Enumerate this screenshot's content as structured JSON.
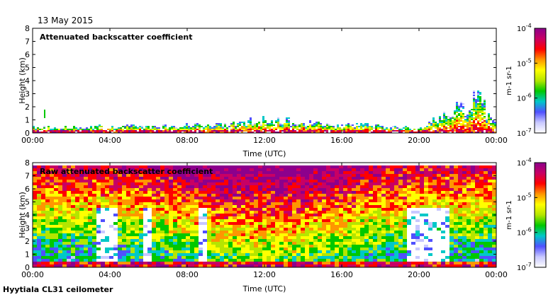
{
  "date_label": "13 May 2015",
  "footer": "Hyytiala CL31 ceilometer",
  "colors": {
    "colormap": [
      "#ffffff",
      "#c8c8ff",
      "#5050ff",
      "#00c8c8",
      "#00c800",
      "#b4e600",
      "#ffff00",
      "#ff9600",
      "#ff0000",
      "#c80064",
      "#8c008c"
    ]
  },
  "chart_data": [
    {
      "type": "heatmap",
      "title": "Attenuated backscatter coefficient",
      "xlabel": "Time (UTC)",
      "ylabel": "Height (km)",
      "x_tick_labels": [
        "00:00",
        "04:00",
        "08:00",
        "12:00",
        "16:00",
        "20:00",
        "00:00"
      ],
      "y_tick_labels": [
        "0",
        "1",
        "2",
        "3",
        "4",
        "5",
        "6",
        "7",
        "8"
      ],
      "xlim_hours": [
        0,
        24
      ],
      "ylim": [
        0,
        8
      ],
      "colorbar": {
        "label": "m-1 sr-1",
        "tick_labels": [
          "10",
          "10",
          "10",
          "10"
        ],
        "tick_exponents": [
          "-4",
          "-5",
          "-6",
          "-7"
        ],
        "range": [
          1e-07,
          0.0001
        ],
        "scale": "log"
      },
      "description_layer_top_km": [
        [
          0,
          0.35
        ],
        [
          9,
          0.5
        ],
        [
          12,
          0.9
        ],
        [
          16,
          0.6
        ],
        [
          20,
          0.3
        ],
        [
          23,
          2.5
        ],
        [
          24,
          0.4
        ]
      ]
    },
    {
      "type": "heatmap",
      "title": "Raw attenuated backscatter coefficient",
      "xlabel": "Time (UTC)",
      "ylabel": "Height (km)",
      "x_tick_labels": [
        "00:00",
        "04:00",
        "08:00",
        "12:00",
        "16:00",
        "20:00",
        "00:00"
      ],
      "y_tick_labels": [
        "0",
        "1",
        "2",
        "3",
        "4",
        "5",
        "6",
        "7",
        "8"
      ],
      "xlim_hours": [
        0,
        24
      ],
      "ylim": [
        0,
        8
      ],
      "colorbar": {
        "label": "m-1 sr-1",
        "tick_labels": [
          "10",
          "10",
          "10",
          "10"
        ],
        "tick_exponents": [
          "-4",
          "-5",
          "-6",
          "-7"
        ],
        "range": [
          1e-07,
          0.0001
        ],
        "scale": "log"
      }
    }
  ]
}
